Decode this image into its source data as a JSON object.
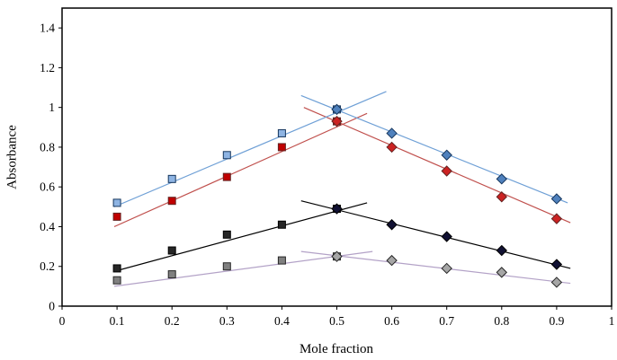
{
  "figure": {
    "background": "#FFFFFF",
    "plot_border_color": "#000000"
  },
  "chart_data": {
    "type": "scatter",
    "title": "",
    "xlabel": "Mole fraction",
    "ylabel": "Absorbance",
    "xlim": [
      0,
      1
    ],
    "ylim": [
      0,
      1.5
    ],
    "grid": false,
    "legend": "none",
    "x_tick_labels": [
      "0",
      "0.1",
      "0.2",
      "0.3",
      "0.4",
      "0.5",
      "0.6",
      "0.7",
      "0.8",
      "0.9",
      "1"
    ],
    "y_tick_labels": [
      "0",
      "0.2",
      "0.4",
      "0.6",
      "0.8",
      "1",
      "1.2",
      "1.4"
    ],
    "series": [
      {
        "name": "series-blue",
        "line_color": "#6FA0D6",
        "square_fill": "#8EB4E3",
        "diamond_fill": "#4F81BD",
        "marker_stroke": "#17375E",
        "ascending": {
          "x": [
            0.1,
            0.2,
            0.3,
            0.4,
            0.5
          ],
          "y": [
            0.52,
            0.64,
            0.76,
            0.87,
            0.99
          ]
        },
        "descending": {
          "x": [
            0.5,
            0.6,
            0.7,
            0.8,
            0.9
          ],
          "y": [
            0.99,
            0.87,
            0.76,
            0.64,
            0.54
          ]
        },
        "trendlines": [
          {
            "x1": 0.095,
            "y1": 0.5,
            "x2": 0.59,
            "y2": 1.08
          },
          {
            "x1": 0.435,
            "y1": 1.06,
            "x2": 0.92,
            "y2": 0.52
          }
        ]
      },
      {
        "name": "series-red",
        "line_color": "#C0504D",
        "square_fill": "#C00000",
        "diamond_fill": "#CC2222",
        "marker_stroke": "#632523",
        "ascending": {
          "x": [
            0.1,
            0.2,
            0.3,
            0.4,
            0.5
          ],
          "y": [
            0.45,
            0.53,
            0.65,
            0.8,
            0.93
          ]
        },
        "descending": {
          "x": [
            0.5,
            0.6,
            0.7,
            0.8,
            0.9
          ],
          "y": [
            0.93,
            0.8,
            0.68,
            0.55,
            0.44
          ]
        },
        "trendlines": [
          {
            "x1": 0.095,
            "y1": 0.4,
            "x2": 0.555,
            "y2": 0.97
          },
          {
            "x1": 0.44,
            "y1": 1.0,
            "x2": 0.925,
            "y2": 0.42
          }
        ]
      },
      {
        "name": "series-black",
        "line_color": "#000000",
        "square_fill": "#262626",
        "diamond_fill": "#111133",
        "marker_stroke": "#000000",
        "ascending": {
          "x": [
            0.1,
            0.2,
            0.3,
            0.4,
            0.5
          ],
          "y": [
            0.19,
            0.28,
            0.36,
            0.41,
            0.49
          ]
        },
        "descending": {
          "x": [
            0.5,
            0.6,
            0.7,
            0.8,
            0.9
          ],
          "y": [
            0.49,
            0.41,
            0.35,
            0.28,
            0.21
          ]
        },
        "trendlines": [
          {
            "x1": 0.095,
            "y1": 0.175,
            "x2": 0.555,
            "y2": 0.52
          },
          {
            "x1": 0.435,
            "y1": 0.53,
            "x2": 0.925,
            "y2": 0.19
          }
        ]
      },
      {
        "name": "series-gray",
        "line_color": "#B3A2C7",
        "square_fill": "#808080",
        "diamond_fill": "#A6A6A6",
        "marker_stroke": "#262626",
        "ascending": {
          "x": [
            0.1,
            0.2,
            0.3,
            0.4,
            0.5
          ],
          "y": [
            0.13,
            0.16,
            0.2,
            0.23,
            0.25
          ]
        },
        "descending": {
          "x": [
            0.5,
            0.6,
            0.7,
            0.8,
            0.9
          ],
          "y": [
            0.25,
            0.23,
            0.19,
            0.17,
            0.12
          ]
        },
        "trendlines": [
          {
            "x1": 0.095,
            "y1": 0.1,
            "x2": 0.565,
            "y2": 0.275
          },
          {
            "x1": 0.435,
            "y1": 0.275,
            "x2": 0.925,
            "y2": 0.115
          }
        ]
      }
    ]
  }
}
